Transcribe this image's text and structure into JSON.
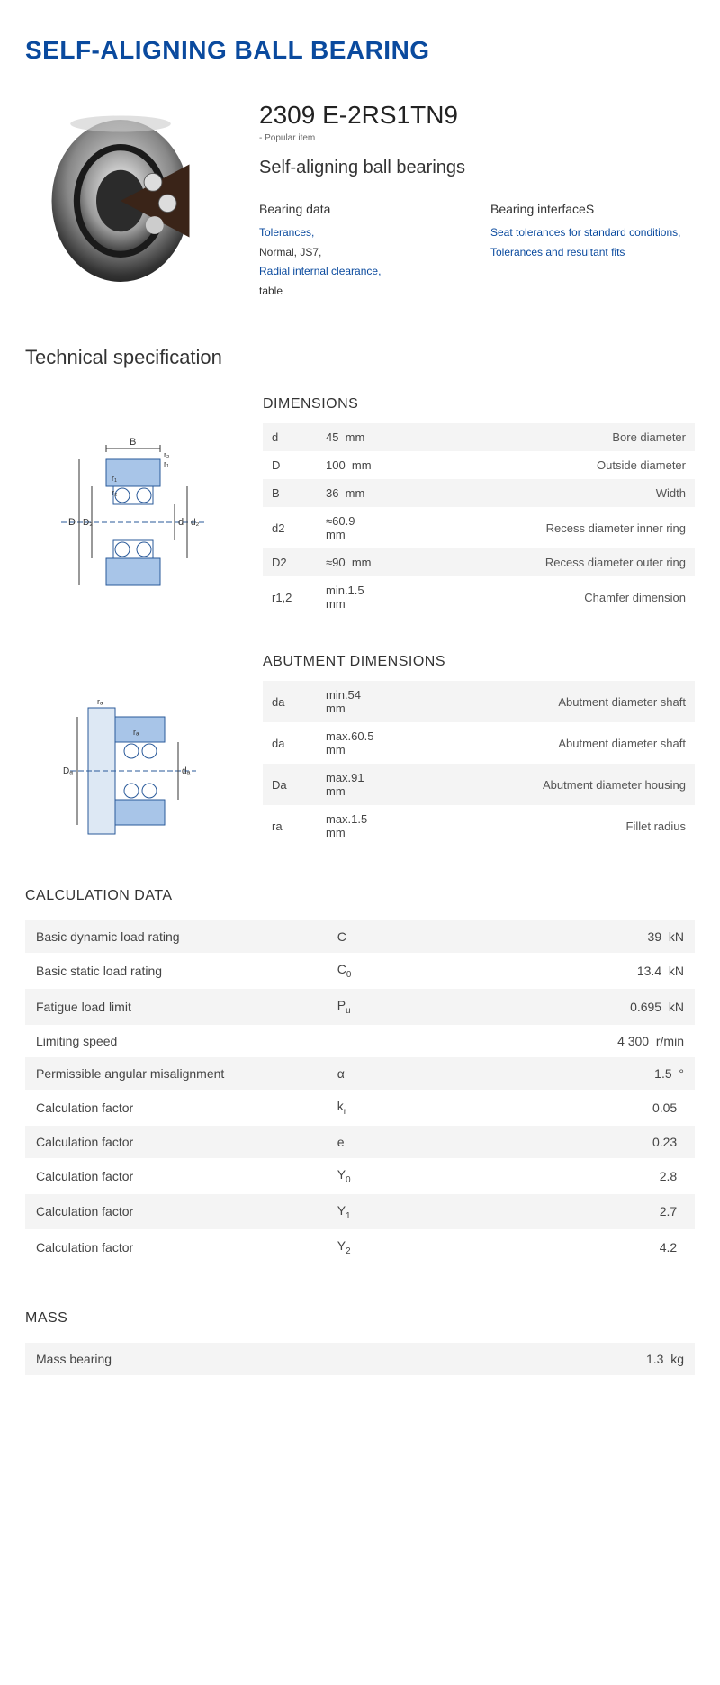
{
  "title": "SELF-ALIGNING BALL BEARING",
  "product": {
    "code": "2309 E-2RS1TN9",
    "popular": "- Popular item",
    "subtitle": "Self-aligning ball bearings"
  },
  "dataCols": {
    "left": {
      "head": "Bearing data",
      "items": [
        {
          "text": "Tolerances,",
          "link": true
        },
        {
          "text": "Normal, JS7,",
          "link": false
        },
        {
          "text": "Radial internal clearance,",
          "link": true
        },
        {
          "text": "table",
          "link": false
        }
      ]
    },
    "right": {
      "head": "Bearing interfaceS",
      "items": [
        {
          "text": "Seat tolerances for standard conditions,",
          "link": true
        },
        {
          "text": "Tolerances and resultant fits",
          "link": true
        }
      ]
    }
  },
  "techSpecHead": "Technical specification",
  "dimensions": {
    "title": "DIMENSIONS",
    "rows": [
      {
        "sym": "d",
        "val": "45",
        "unit": "mm",
        "desc": "Bore diameter"
      },
      {
        "sym": "D",
        "val": "100",
        "unit": "mm",
        "desc": "Outside diameter"
      },
      {
        "sym": "B",
        "val": "36",
        "unit": "mm",
        "desc": "Width"
      },
      {
        "sym": "d2",
        "val": "≈60.9",
        "unit": "mm",
        "desc": "Recess diameter inner ring"
      },
      {
        "sym": "D2",
        "val": "≈90",
        "unit": "mm",
        "desc": "Recess diameter outer ring"
      },
      {
        "sym": "r1,2",
        "val": "min.1.5",
        "unit": "mm",
        "desc": "Chamfer dimension"
      }
    ]
  },
  "abutment": {
    "title": "ABUTMENT DIMENSIONS",
    "rows": [
      {
        "sym": "da",
        "val": "min.54",
        "unit": "mm",
        "desc": "Abutment diameter shaft"
      },
      {
        "sym": "da",
        "val": "max.60.5",
        "unit": "mm",
        "desc": "Abutment diameter shaft"
      },
      {
        "sym": "Da",
        "val": "max.91",
        "unit": "mm",
        "desc": "Abutment diameter housing"
      },
      {
        "sym": "ra",
        "val": "max.1.5",
        "unit": "mm",
        "desc": "Fillet radius"
      }
    ]
  },
  "calc": {
    "title": "CALCULATION DATA",
    "rows": [
      {
        "lbl": "Basic dynamic load rating",
        "sym": "C",
        "sub": "",
        "val": "39",
        "unit": "kN"
      },
      {
        "lbl": "Basic static load rating",
        "sym": "C",
        "sub": "0",
        "val": "13.4",
        "unit": "kN"
      },
      {
        "lbl": "Fatigue load limit",
        "sym": "P",
        "sub": "u",
        "val": "0.695",
        "unit": "kN"
      },
      {
        "lbl": "Limiting speed",
        "sym": "",
        "sub": "",
        "val": "4 300",
        "unit": "r/min"
      },
      {
        "lbl": "Permissible angular misalignment",
        "sym": "α",
        "sub": "",
        "val": "1.5",
        "unit": "°"
      },
      {
        "lbl": "Calculation factor",
        "sym": "k",
        "sub": "r",
        "val": "0.05",
        "unit": ""
      },
      {
        "lbl": "Calculation factor",
        "sym": "e",
        "sub": "",
        "val": "0.23",
        "unit": ""
      },
      {
        "lbl": "Calculation factor",
        "sym": "Y",
        "sub": "0",
        "val": "2.8",
        "unit": ""
      },
      {
        "lbl": "Calculation factor",
        "sym": "Y",
        "sub": "1",
        "val": "2.7",
        "unit": ""
      },
      {
        "lbl": "Calculation factor",
        "sym": "Y",
        "sub": "2",
        "val": "4.2",
        "unit": ""
      }
    ]
  },
  "mass": {
    "title": "MASS",
    "rows": [
      {
        "lbl": "Mass bearing",
        "sym": "",
        "sub": "",
        "val": "1.3",
        "unit": "kg"
      }
    ]
  },
  "colors": {
    "brand": "#0a4a9e",
    "rowAlt": "#f4f4f4",
    "text": "#333333"
  }
}
